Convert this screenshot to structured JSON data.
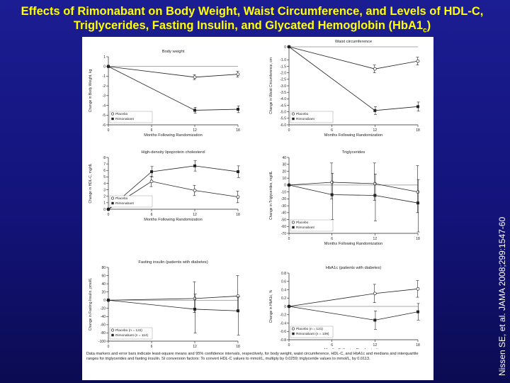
{
  "slide": {
    "title_main": "Effects of Rimonabant on Body Weight, Waist Circumference, and Levels of HDL-C, Triglycerides, Fasting Insulin, and Glycated Hemoglobin (HbA1",
    "title_sub": "c",
    "title_end": ")",
    "citation": "Nissen SE, et al. JAMA 2008;299:1547-60"
  },
  "footnote": "Data markers and error bars indicate least-square means and 95% confidence intervals, respectively, for body weight, waist circumference, HDL-C, and HbA1c and medians and interquartile ranges for triglycerides and fasting insulin. SI conversion factors: To convert HDL-C values to mmol/L, multiply by 0.0259; triglyceride values to mmol/L, by 0.0113.",
  "colors": {
    "title": "#ffff00",
    "background": "#1b1d92",
    "ink": "#222222"
  },
  "chart_data": [
    {
      "type": "line",
      "title": "Body weight",
      "xlabel": "Months Following Randomization",
      "ylabel": "Change in Body Weight, kg",
      "x": [
        0,
        6,
        12,
        18
      ],
      "xticks": [
        "0",
        "6",
        "12",
        "18"
      ],
      "ylim": [
        -6,
        1
      ],
      "yticks": [
        1,
        0,
        -1,
        -2,
        -3,
        -4,
        -5,
        -6
      ],
      "yticklabels": [
        "1",
        "0",
        "-1",
        "-2",
        "-3",
        "-4",
        "-5",
        "-6"
      ],
      "legend": [
        "Placebo",
        "Rimonabant"
      ],
      "series": [
        {
          "name": "Placebo",
          "marker": "open-circle",
          "x": [
            0,
            12,
            18
          ],
          "values": [
            0,
            -1.1,
            -0.8
          ],
          "err": [
            0,
            0.25,
            0.3
          ]
        },
        {
          "name": "Rimonabant",
          "marker": "filled-square",
          "x": [
            0,
            12,
            18
          ],
          "values": [
            0,
            -4.5,
            -4.4
          ],
          "err": [
            0,
            0.3,
            0.35
          ]
        }
      ]
    },
    {
      "type": "line",
      "title": "Waist circumference",
      "xlabel": "Months Following Randomization",
      "ylabel": "Change in Waist Circumference, cm",
      "x": [
        0,
        6,
        12,
        18
      ],
      "xticks": [
        "0",
        "6",
        "12",
        "18"
      ],
      "ylim": [
        -6,
        0
      ],
      "yticks": [
        0,
        -1,
        -1.5,
        -2,
        -2.5,
        -3,
        -3.5,
        -4,
        -4.5,
        -5,
        -5.5,
        -6
      ],
      "yticklabels": [
        "0",
        "-1.0",
        "-1.5",
        "-2.0",
        "-2.5",
        "-3.0",
        "-3.5",
        "-4.0",
        "-4.5",
        "-5.0",
        "-5.5",
        "-6.0"
      ],
      "legend": [
        "Placebo",
        "Rimonabant"
      ],
      "series": [
        {
          "name": "Placebo",
          "marker": "open-circle",
          "x": [
            0,
            12,
            18
          ],
          "values": [
            0,
            -1.7,
            -1.1
          ],
          "err": [
            0,
            0.3,
            0.3
          ]
        },
        {
          "name": "Rimonabant",
          "marker": "filled-square",
          "x": [
            0,
            12,
            18
          ],
          "values": [
            0,
            -4.9,
            -4.6
          ],
          "err": [
            0,
            0.3,
            0.35
          ]
        }
      ]
    },
    {
      "type": "line",
      "title": "High-density lipoprotein cholesterol",
      "xlabel": "Months Following Randomization",
      "ylabel": "Change in HDL-C, mg/dL",
      "x": [
        0,
        6,
        12,
        18
      ],
      "xticks": [
        "0",
        "6",
        "12",
        "18"
      ],
      "ylim": [
        0,
        8
      ],
      "yticks": [
        8,
        7,
        6,
        5,
        4,
        3,
        2,
        1,
        0
      ],
      "yticklabels": [
        "8",
        "7",
        "6",
        "5",
        "4",
        "3",
        "2",
        "1",
        "0"
      ],
      "legend": [
        "Placebo",
        "Rimonabant"
      ],
      "series": [
        {
          "name": "Placebo",
          "marker": "open-circle",
          "x": [
            0,
            6,
            12,
            18
          ],
          "values": [
            0,
            4.3,
            2.9,
            1.9
          ],
          "err": [
            0,
            0.8,
            0.8,
            0.9
          ]
        },
        {
          "name": "Rimonabant",
          "marker": "filled-square",
          "x": [
            0,
            6,
            12,
            18
          ],
          "values": [
            0,
            5.8,
            6.7,
            5.8
          ],
          "err": [
            0,
            0.8,
            0.8,
            0.9
          ]
        }
      ]
    },
    {
      "type": "line",
      "title": "Triglycerides",
      "xlabel": "Months Following Randomization",
      "ylabel": "Change in Triglycerides, mg/dL",
      "x": [
        0,
        6,
        12,
        18
      ],
      "xticks": [
        "0",
        "6",
        "12",
        "18"
      ],
      "ylim": [
        -70,
        40
      ],
      "yticks": [
        40,
        30,
        20,
        10,
        0,
        -10,
        -20,
        -30,
        -40,
        -50,
        -60,
        -70
      ],
      "yticklabels": [
        "40",
        "30",
        "20",
        "10",
        "0",
        "-10",
        "-20",
        "-30",
        "-40",
        "-50",
        "-60",
        "-70"
      ],
      "legend": [
        "Placebo",
        "Rimonabant"
      ],
      "series": [
        {
          "name": "Placebo",
          "marker": "open-circle",
          "x": [
            0,
            6,
            12,
            18
          ],
          "values": [
            0,
            4,
            2,
            -10
          ],
          "lo": [
            0,
            -20,
            -22,
            -40
          ],
          "hi": [
            0,
            32,
            32,
            28
          ]
        },
        {
          "name": "Rimonabant",
          "marker": "filled-square",
          "x": [
            0,
            6,
            12,
            18
          ],
          "values": [
            0,
            -14,
            -15,
            -26
          ],
          "lo": [
            0,
            -50,
            -52,
            -68
          ],
          "hi": [
            0,
            17,
            16,
            8
          ]
        }
      ]
    },
    {
      "type": "line",
      "title": "Fasting insulin (patients with diabetes)",
      "xlabel": "Months Following Randomization",
      "ylabel": "Change in Fasting Insulin, pmol/L",
      "x": [
        0,
        6,
        12,
        18
      ],
      "xticks": [
        "0",
        "6",
        "12",
        "18"
      ],
      "ylim": [
        -100,
        80
      ],
      "yticks": [
        80,
        60,
        40,
        20,
        0,
        -20,
        -40,
        -60,
        -80,
        -100
      ],
      "yticklabels": [
        "80",
        "60",
        "40",
        "20",
        "0",
        "-20",
        "-40",
        "-60",
        "-80",
        "-100"
      ],
      "legend": [
        "Placebo (n = 122)",
        "Rimonabant (n = 114)"
      ],
      "series": [
        {
          "name": "Placebo (n = 122)",
          "marker": "open-circle",
          "x": [
            0,
            12,
            18
          ],
          "values": [
            0,
            4,
            10
          ],
          "lo": [
            0,
            -30,
            -25
          ],
          "hi": [
            0,
            45,
            60
          ]
        },
        {
          "name": "Rimonabant (n = 114)",
          "marker": "filled-square",
          "x": [
            0,
            12,
            18
          ],
          "values": [
            0,
            -22,
            -26
          ],
          "lo": [
            0,
            -80,
            -85
          ],
          "hi": [
            0,
            15,
            8
          ]
        }
      ]
    },
    {
      "type": "line",
      "title": "HbA1c (patients with diabetes)",
      "xlabel": "Months Following Randomization",
      "ylabel": "Change in HbA1c, %",
      "x": [
        0,
        6,
        12,
        18
      ],
      "xticks": [
        "0",
        "6",
        "12",
        "18"
      ],
      "ylim": [
        -0.8,
        0.8
      ],
      "yticks": [
        0.8,
        0.6,
        0.4,
        0.2,
        0,
        -0.2,
        -0.4,
        -0.6,
        -0.8
      ],
      "yticklabels": [
        "0.8",
        "0.6",
        "0.4",
        "0.2",
        "0",
        "-0.2",
        "-0.4",
        "-0.6",
        "-0.8"
      ],
      "legend": [
        "Placebo (n = 121)",
        "Rimonabant (n = 109)"
      ],
      "series": [
        {
          "name": "Placebo (n = 121)",
          "marker": "open-circle",
          "x": [
            0,
            12,
            18
          ],
          "values": [
            0,
            0.31,
            0.42
          ],
          "err": [
            0,
            0.22,
            0.2
          ]
        },
        {
          "name": "Rimonabant (n = 109)",
          "marker": "filled-square",
          "x": [
            0,
            12,
            18
          ],
          "values": [
            0,
            -0.33,
            -0.13
          ],
          "err": [
            0,
            0.22,
            0.2
          ]
        }
      ]
    }
  ]
}
